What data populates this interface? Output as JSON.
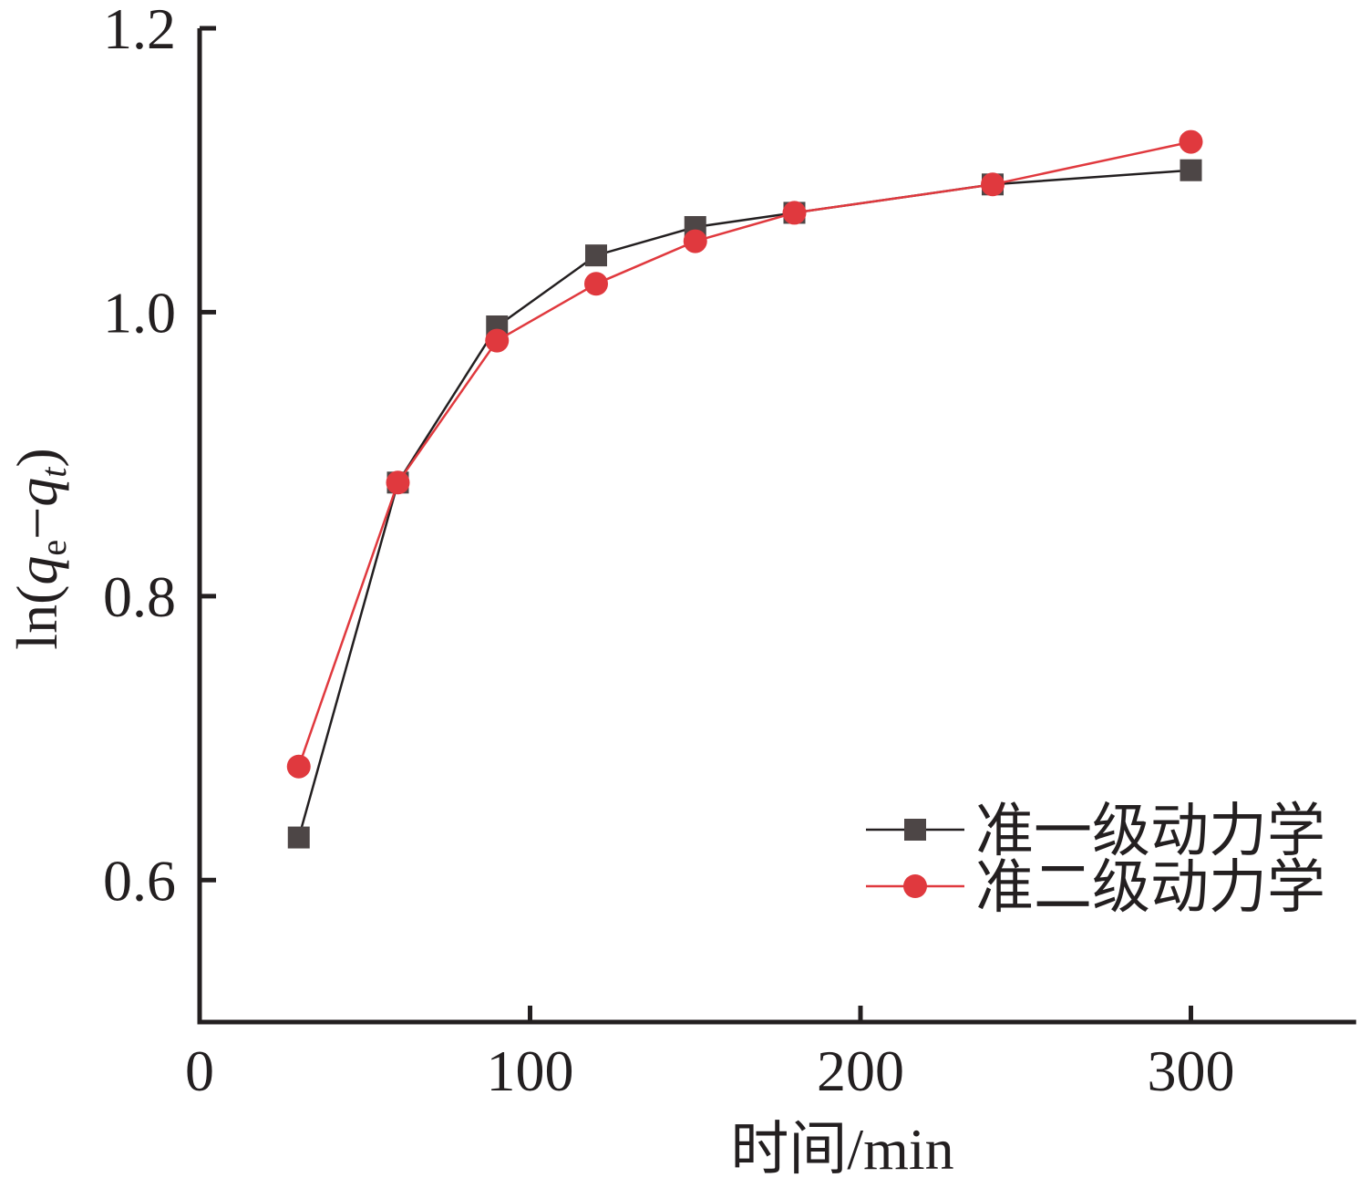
{
  "chart_data": {
    "type": "line",
    "title": "",
    "xlabel": "时间/min",
    "ylabel": "ln(q_e−q_t)",
    "ylabel_parts": {
      "prefix": "ln(",
      "q1": "q",
      "sub1": "e",
      "dash": "−",
      "q2": "q",
      "sub2": "t",
      "suffix": ")"
    },
    "xlim": [
      0,
      350
    ],
    "ylim": [
      0.5,
      1.2
    ],
    "xticks": [
      0,
      100,
      200,
      300
    ],
    "xtick_labels": [
      "0",
      "100",
      "200",
      "300"
    ],
    "yticks": [
      0.6,
      0.8,
      1.0,
      1.2
    ],
    "ytick_labels": [
      "0.6",
      "0.8",
      "1.0",
      "1.2"
    ],
    "grid": false,
    "legend_position": "bottom-right",
    "x": [
      30,
      60,
      90,
      120,
      150,
      180,
      240,
      300
    ],
    "series": [
      {
        "name": "准一级动力学",
        "marker": "square",
        "color": "#231f20",
        "marker_color": "#4d4646",
        "values": [
          0.63,
          0.88,
          0.99,
          1.04,
          1.06,
          1.07,
          1.09,
          1.1
        ]
      },
      {
        "name": "准二级动力学",
        "marker": "circle",
        "color": "#e0393e",
        "marker_color": "#e0393e",
        "values": [
          0.68,
          0.88,
          0.98,
          1.02,
          1.05,
          1.07,
          1.09,
          1.12
        ]
      }
    ]
  }
}
